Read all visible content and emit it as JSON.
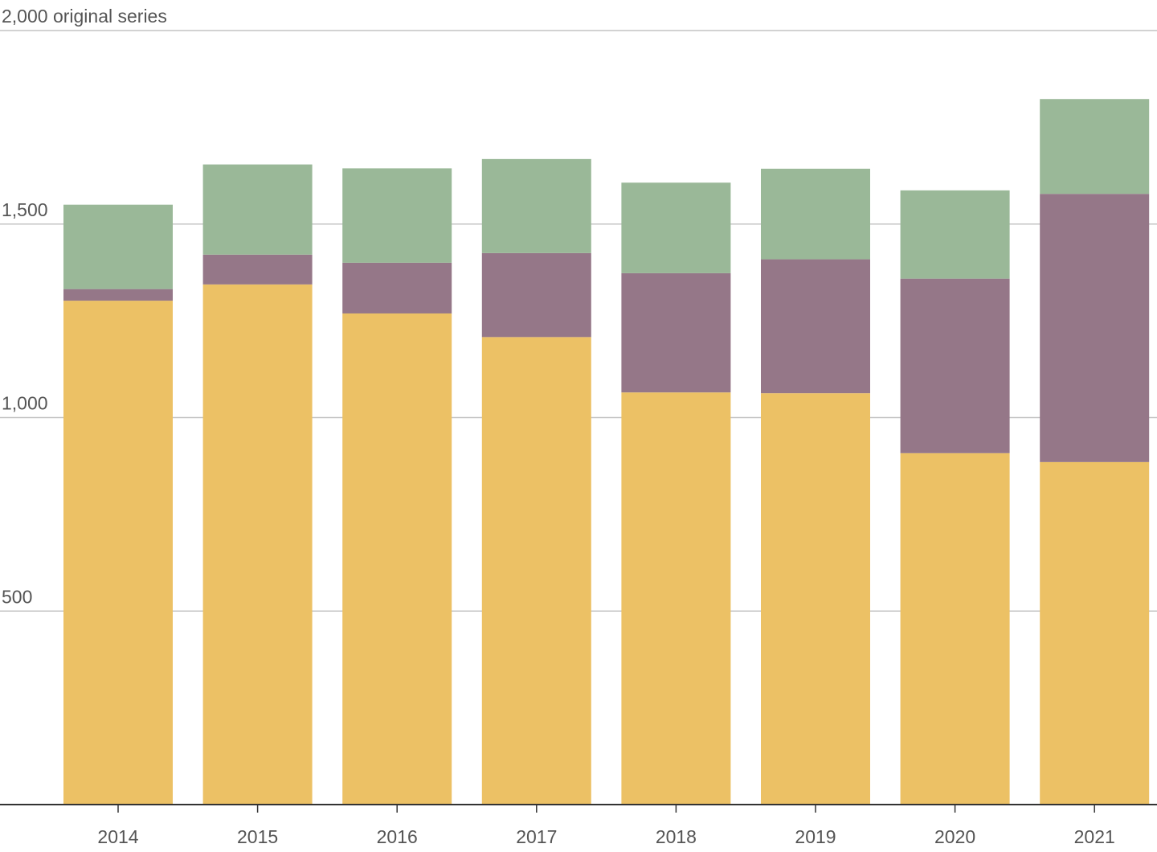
{
  "chart_data": {
    "type": "bar",
    "stacked": true,
    "categories": [
      "2014",
      "2015",
      "2016",
      "2017",
      "2018",
      "2019",
      "2020",
      "2021"
    ],
    "series": [
      {
        "color": "#ecc165",
        "values": [
          1302,
          1344,
          1269,
          1208,
          1065,
          1063,
          908,
          885
        ]
      },
      {
        "color": "#957788",
        "values": [
          30,
          77,
          131,
          217,
          308,
          346,
          451,
          693
        ]
      },
      {
        "color": "#9ab898",
        "values": [
          218,
          233,
          244,
          243,
          234,
          234,
          228,
          245
        ]
      }
    ],
    "ylim": [
      0,
      2000
    ],
    "yticks": [
      {
        "value": 500,
        "label": "500"
      },
      {
        "value": 1000,
        "label": "1,000"
      },
      {
        "value": 1500,
        "label": "1,500"
      },
      {
        "value": 2000,
        "label": "2,000 original series"
      }
    ],
    "grid": true,
    "legend": "none",
    "title": "",
    "xlabel": "",
    "ylabel": ""
  }
}
